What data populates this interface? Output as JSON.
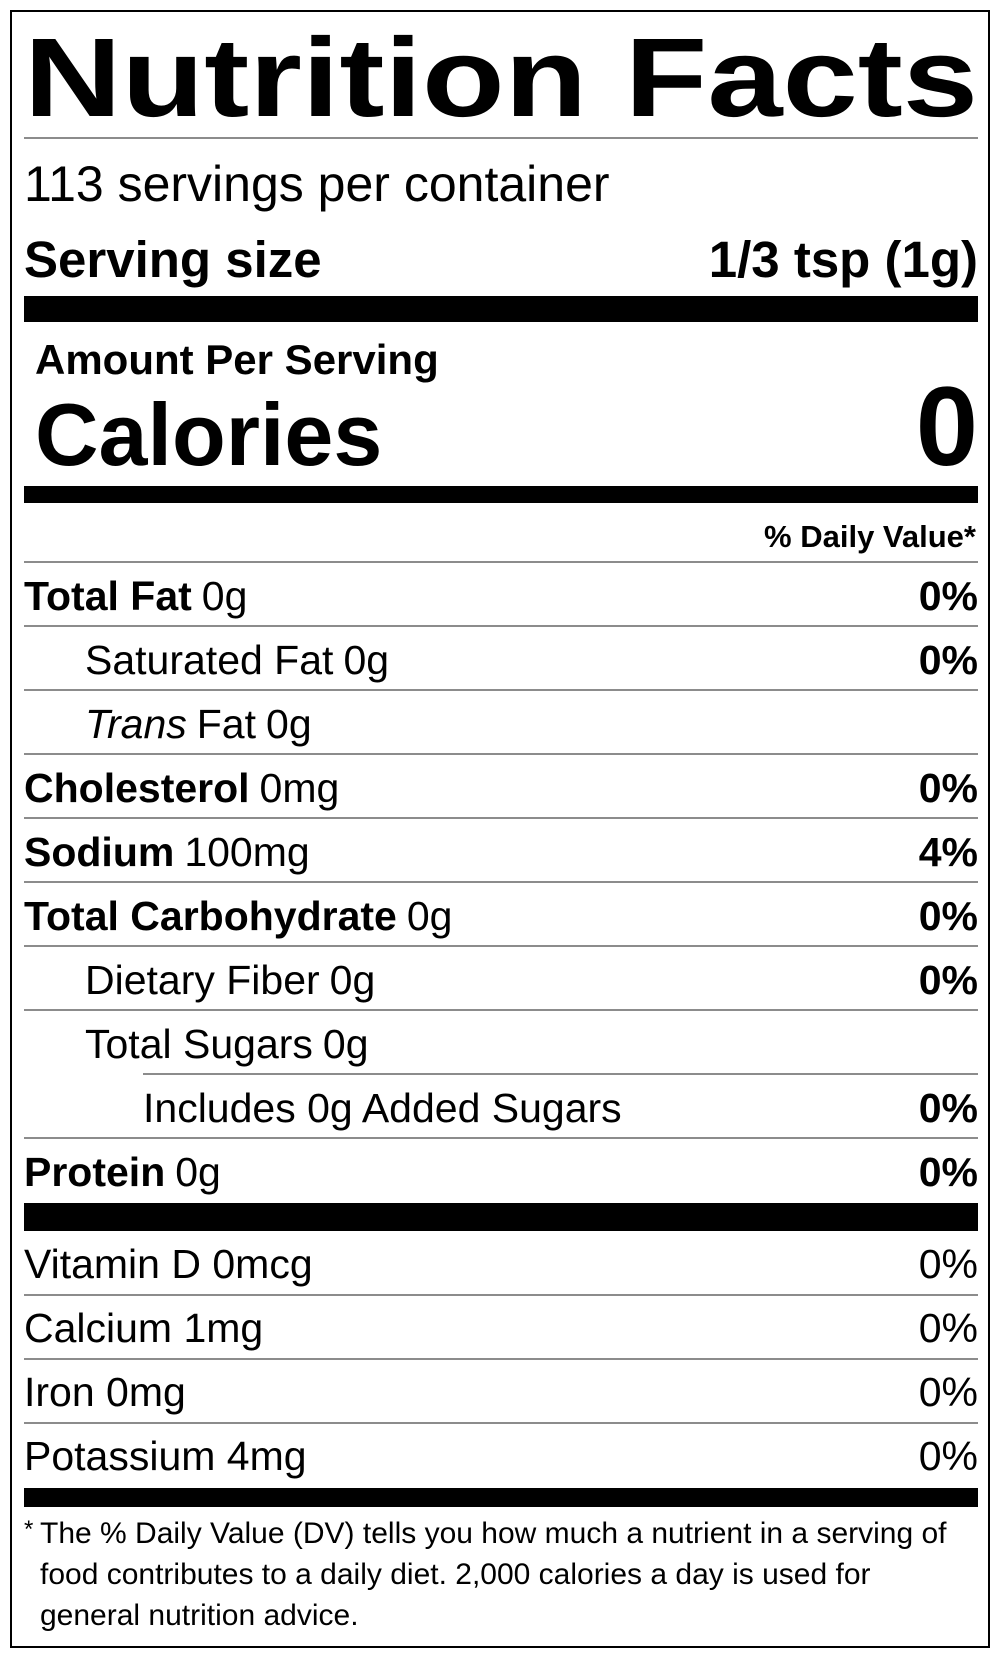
{
  "title": "Nutrition Facts",
  "servings_per_container": "113 servings per container",
  "serving_size": {
    "label": "Serving size",
    "value": "1/3 tsp (1g)"
  },
  "amount_per_serving": "Amount Per Serving",
  "calories": {
    "label": "Calories",
    "value": "0"
  },
  "daily_value_header": "% Daily Value*",
  "nutrients": [
    {
      "name": "Total Fat",
      "amount": "0g",
      "daily_value": "0%",
      "bold": true,
      "level": 0
    },
    {
      "name": "Saturated Fat",
      "amount": "0g",
      "daily_value": "0%",
      "bold": false,
      "level": 1
    },
    {
      "name_italic": "Trans",
      "name": "Fat",
      "amount": "0g",
      "bold": false,
      "level": 1
    },
    {
      "name": "Cholesterol",
      "amount": "0mg",
      "daily_value": "0%",
      "bold": true,
      "level": 0
    },
    {
      "name": "Sodium",
      "amount": "100mg",
      "daily_value": "4%",
      "bold": true,
      "level": 0
    },
    {
      "name": "Total Carbohydrate",
      "amount": "0g",
      "daily_value": "0%",
      "bold": true,
      "level": 0
    },
    {
      "name": "Dietary Fiber",
      "amount": "0g",
      "daily_value": "0%",
      "bold": false,
      "level": 1
    },
    {
      "name": "Total Sugars",
      "amount": "0g",
      "bold": false,
      "level": 1
    },
    {
      "name": "Includes 0g Added Sugars",
      "daily_value": "0%",
      "bold": false,
      "level": 2
    },
    {
      "name": "Protein",
      "amount": "0g",
      "daily_value": "0%",
      "bold": true,
      "level": 0
    }
  ],
  "vitamins": [
    {
      "name": "Vitamin D 0mcg",
      "daily_value": "0%"
    },
    {
      "name": "Calcium 1mg",
      "daily_value": "0%"
    },
    {
      "name": "Iron 0mg",
      "daily_value": "0%"
    },
    {
      "name": "Potassium 4mg",
      "daily_value": "0%"
    }
  ],
  "footnote": {
    "marker": "*",
    "text": "The % Daily Value (DV) tells you how much a nutrient in a serving of food contributes to a daily diet. 2,000 calories a day is used for general nutrition advice."
  }
}
